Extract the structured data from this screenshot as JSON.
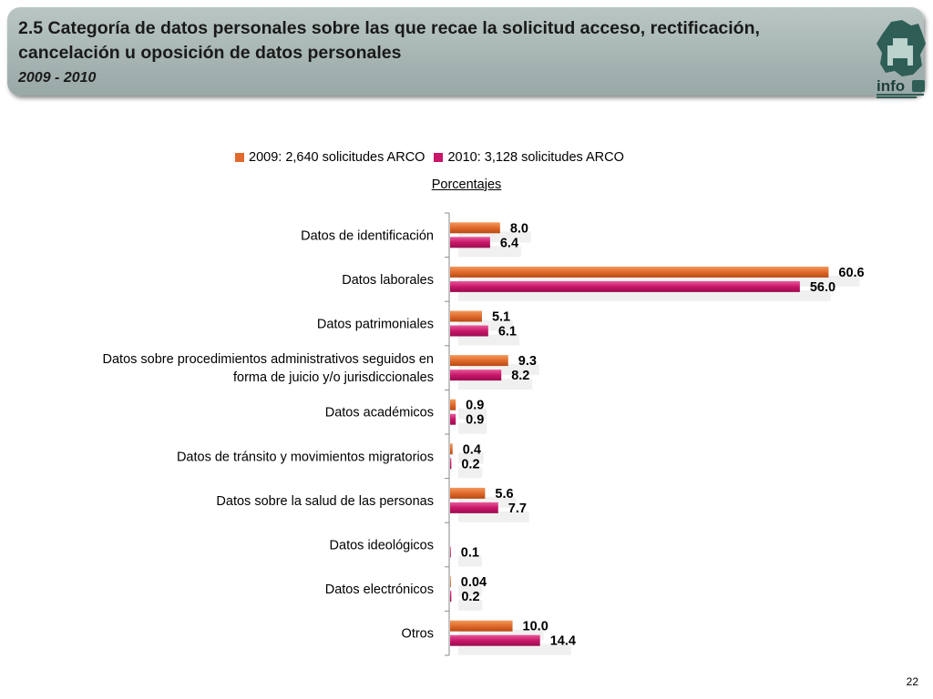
{
  "header": {
    "title": "2.5 Categoría de datos personales sobre las que recae la solicitud acceso, rectificación, cancelación u oposición de datos personales",
    "subtitle": "2009 - 2010",
    "logo_text": "info"
  },
  "page_number": "22",
  "colors": {
    "series_2009": "#e06a2b",
    "series_2010": "#c8176a",
    "header_bg": "#a8b7b5"
  },
  "chart_data": {
    "type": "bar",
    "orientation": "horizontal",
    "unit_label": "Porcentajes",
    "legend_position": "top",
    "grid": false,
    "xlim": [
      0,
      62
    ],
    "categories": [
      [
        "Datos de identificación"
      ],
      [
        "Datos laborales"
      ],
      [
        "Datos patrimoniales"
      ],
      [
        "Datos sobre procedimientos administrativos seguidos en",
        "forma de juicio y/o jurisdiccionales"
      ],
      [
        "Datos académicos"
      ],
      [
        "Datos de tránsito y movimientos migratorios"
      ],
      [
        "Datos sobre la salud de las personas"
      ],
      [
        "Datos ideológicos"
      ],
      [
        "Datos electrónicos"
      ],
      [
        "Otros"
      ]
    ],
    "series": [
      {
        "name": "2009: 2,640 solicitudes ARCO",
        "values": [
          8.0,
          60.6,
          5.1,
          9.3,
          0.9,
          0.4,
          5.6,
          null,
          0.04,
          10.0
        ],
        "labels": [
          "8.0",
          "60.6",
          "5.1",
          "9.3",
          "0.9",
          "0.4",
          "5.6",
          "",
          "0.04",
          "10.0"
        ]
      },
      {
        "name": "2010: 3,128 solicitudes ARCO",
        "values": [
          6.4,
          56.0,
          6.1,
          8.2,
          0.9,
          0.2,
          7.7,
          0.1,
          0.2,
          14.4
        ],
        "labels": [
          "6.4",
          "56.0",
          "6.1",
          "8.2",
          "0.9",
          "0.2",
          "7.7",
          "0.1",
          "0.2",
          "14.4"
        ]
      }
    ]
  }
}
